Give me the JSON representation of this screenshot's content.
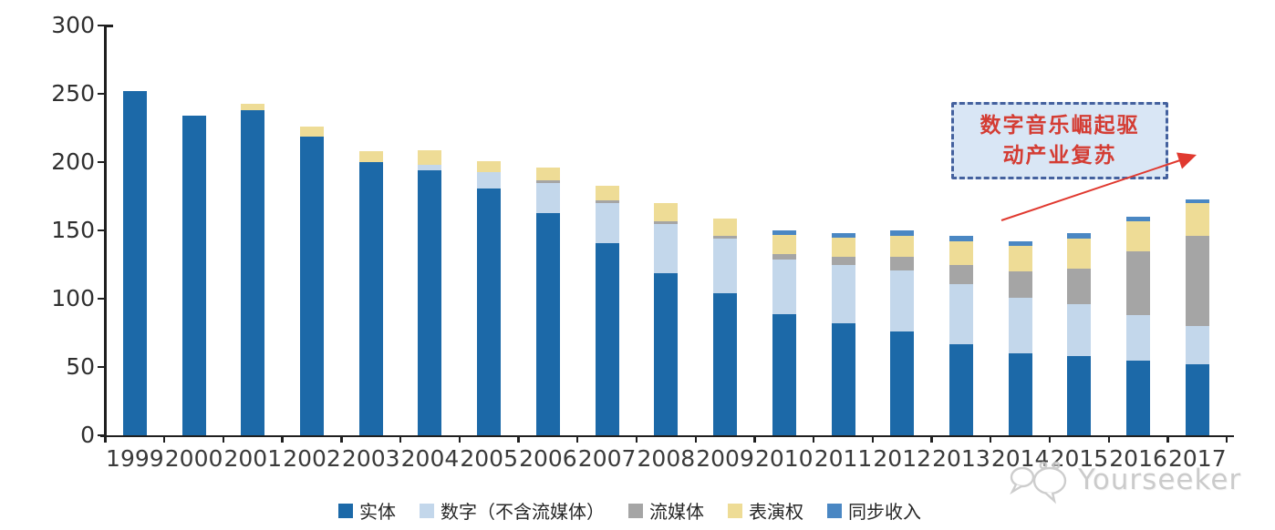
{
  "chart_data": {
    "type": "bar",
    "stacked": true,
    "title": "",
    "xlabel": "",
    "ylabel": "",
    "ylim": [
      0,
      300
    ],
    "yticks": [
      0,
      50,
      100,
      150,
      200,
      250,
      300
    ],
    "grid": false,
    "legend_position": "bottom",
    "categories": [
      "1999",
      "2000",
      "2001",
      "2002",
      "2003",
      "2004",
      "2005",
      "2006",
      "2007",
      "2008",
      "2009",
      "2010",
      "2011",
      "2012",
      "2013",
      "2014",
      "2015",
      "2016",
      "2017"
    ],
    "series": [
      {
        "name": "实体",
        "color": "#1C69A8",
        "values": [
          252,
          234,
          238,
          219,
          200,
          194,
          181,
          163,
          141,
          119,
          104,
          89,
          82,
          76,
          67,
          60,
          58,
          55,
          52
        ]
      },
      {
        "name": "数字（不含流媒体）",
        "color": "#C3D7EB",
        "values": [
          0,
          0,
          0,
          0,
          0,
          4,
          12,
          22,
          29,
          36,
          40,
          40,
          43,
          45,
          44,
          41,
          38,
          33,
          28
        ]
      },
      {
        "name": "流媒体",
        "color": "#A5A5A5",
        "values": [
          0,
          0,
          0,
          0,
          0,
          0,
          0,
          2,
          2,
          2,
          2,
          4,
          6,
          10,
          14,
          19,
          26,
          47,
          66
        ]
      },
      {
        "name": "表演权",
        "color": "#EEDC96",
        "values": [
          0,
          0,
          5,
          7,
          8,
          11,
          8,
          9,
          11,
          13,
          13,
          14,
          14,
          15,
          17,
          19,
          22,
          22,
          24
        ]
      },
      {
        "name": "同步收入",
        "color": "#4A87C3",
        "values": [
          0,
          0,
          0,
          0,
          0,
          0,
          0,
          0,
          0,
          0,
          0,
          3,
          3,
          4,
          4,
          3,
          4,
          3,
          3
        ]
      }
    ],
    "totals": [
      252,
      234,
      243,
      226,
      208,
      209,
      201,
      196,
      183,
      170,
      159,
      150,
      148,
      150,
      146,
      142,
      148,
      160,
      173
    ]
  },
  "annotation": {
    "text": "数字音乐崛起驱动产业复苏",
    "lines": [
      "数字音乐崛起驱",
      "动产业复苏"
    ],
    "box_fill": "#D9E6F5",
    "box_border_color": "#44619E",
    "text_color": "#D43C33",
    "arrow_color": "#E0392F"
  },
  "watermark": {
    "text": "Yourseeker",
    "logo": "chat-bubbles-logo",
    "color": "#C6C6C6"
  }
}
